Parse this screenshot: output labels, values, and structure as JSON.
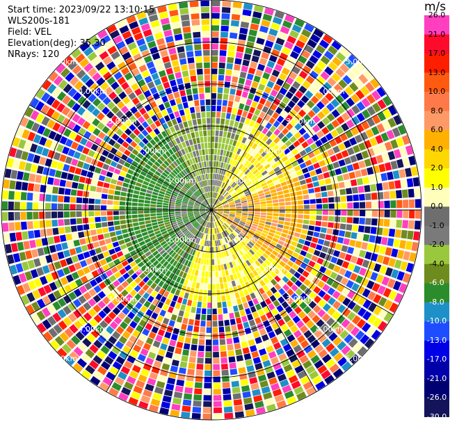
{
  "info": {
    "start_time": "Start time: 2023/09/22 13:10:15",
    "instrument": "WLS200s-181",
    "field": "Field: VEL",
    "elevation": "Elevation(deg): 35.30",
    "nrays": "NRays: 120"
  },
  "colorbar": {
    "title": "m/s",
    "ticks": [
      "26.0",
      "21.0",
      "17.0",
      "13.0",
      "10.0",
      "8.0",
      "6.0",
      "4.0",
      "2.0",
      "1.0",
      "0.0",
      "-1.0",
      "-2.0",
      "-4.0",
      "-6.0",
      "-8.0",
      "-10.0",
      "-13.0",
      "-17.0",
      "-21.0",
      "-26.0",
      "-30.0"
    ],
    "colors": [
      "#ff3fbf",
      "#ff0a2a",
      "#ff1e00",
      "#ff5a10",
      "#ff7a48",
      "#ff9a66",
      "#ffb000",
      "#ffd700",
      "#ffff00",
      "#ffffbb",
      "#6e6e6e",
      "#7a7a7a",
      "#9ac83c",
      "#6e8c1e",
      "#2b8c2b",
      "#1e90c8",
      "#1e4cff",
      "#0000e6",
      "#0000aa",
      "#000073",
      "#14145a"
    ]
  },
  "chart_data": {
    "type": "heatmap",
    "projection": "polar PPI",
    "field": "VEL",
    "units": "m/s",
    "value_range": [
      -30,
      30
    ],
    "rays": 120,
    "range_rings_km": [
      1.0,
      2.0,
      3.0,
      4.0,
      5.0
    ],
    "range_labels": [
      "1.00km",
      "2.00km",
      "3.00km",
      "4.00km",
      "5.00km"
    ],
    "max_range_km": 5.0,
    "near_field": {
      "max_range_km": 2.2,
      "sectors": [
        {
          "azimuth_deg": [
            200,
            330
          ],
          "value_ms": -6,
          "color_name": "green"
        },
        {
          "azimuth_deg": [
            330,
            20
          ],
          "value_ms": -3,
          "color_name": "olive-green"
        },
        {
          "azimuth_deg": [
            20,
            70
          ],
          "value_ms": 2,
          "color_name": "yellow"
        },
        {
          "azimuth_deg": [
            70,
            130
          ],
          "value_ms": 6,
          "color_name": "orange"
        },
        {
          "azimuth_deg": [
            130,
            200
          ],
          "value_ms": 2,
          "color_name": "yellow"
        }
      ]
    },
    "far_field": "noise (random colors) beyond ~2.2 km"
  }
}
